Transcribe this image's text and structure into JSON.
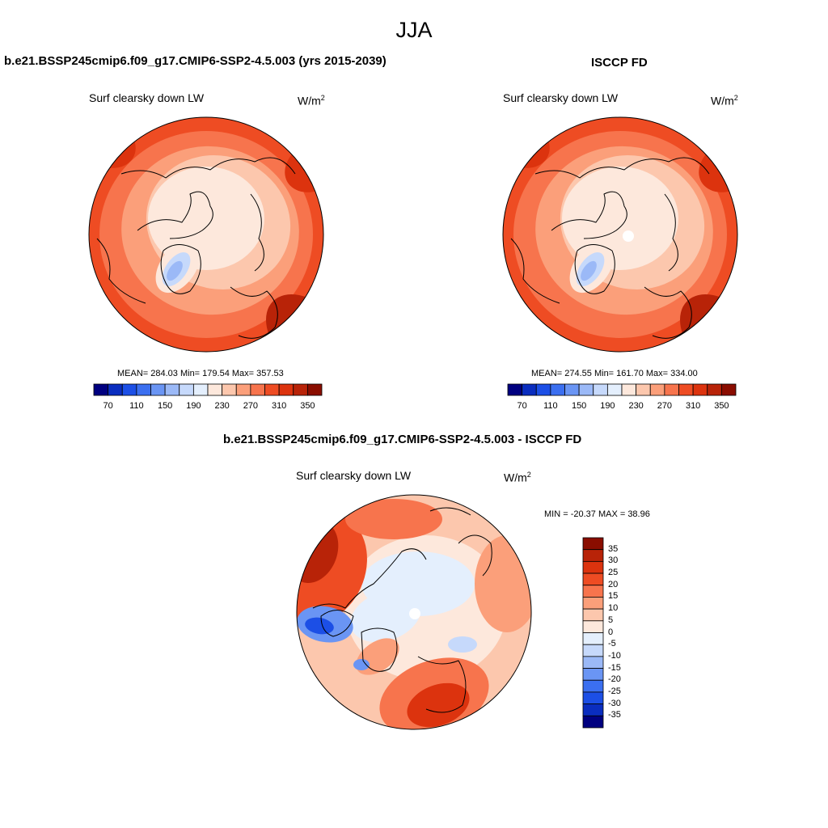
{
  "figure": {
    "season": "JJA"
  },
  "panels": [
    {
      "id": "model",
      "title": "b.e21.BSSP245cmip6.f09_g17.CMIP6-SSP2-4.5.003 (yrs 2015-2039)",
      "variable": "Surf clearsky down LW",
      "units_base": "W/m",
      "units_exp": "2",
      "stats_text": "MEAN= 284.03  Min= 179.54  Max= 357.53"
    },
    {
      "id": "obs",
      "title": "ISCCP FD",
      "variable": "Surf clearsky down LW",
      "units_base": "W/m",
      "units_exp": "2",
      "stats_text": "MEAN= 274.55  Min= 161.70  Max= 334.00"
    },
    {
      "id": "diff",
      "title": "b.e21.BSSP245cmip6.f09_g17.CMIP6-SSP2-4.5.003 - ISCCP FD",
      "variable": "Surf clearsky down LW",
      "units_base": "W/m",
      "units_exp": "2",
      "stats_text": "MIN = -20.37 MAX =  38.96"
    }
  ],
  "chart_data": [
    {
      "type": "heatmap",
      "projection": "north polar stereographic",
      "title": "b.e21.BSSP245cmip6.f09_g17.CMIP6-SSP2-4.5.003 (yrs 2015-2039)",
      "variable": "Surf clearsky down LW",
      "units": "W/m2",
      "mean": 284.03,
      "min": 179.54,
      "max": 357.53,
      "colorbar": {
        "orientation": "horizontal",
        "levels": [
          70,
          90,
          110,
          130,
          150,
          170,
          190,
          210,
          230,
          250,
          270,
          290,
          310,
          330,
          350
        ],
        "tick_labels": [
          "70",
          "110",
          "150",
          "190",
          "230",
          "270",
          "310",
          "350"
        ],
        "colors": [
          "#000080",
          "#0a2dbf",
          "#1c4fe6",
          "#3b6ff0",
          "#6a95f4",
          "#9bb9f7",
          "#c6d9fb",
          "#e4effd",
          "#fde8dc",
          "#fcc7ad",
          "#fb9f7a",
          "#f7744d",
          "#ee4c23",
          "#dc330e",
          "#b82308",
          "#8a0d00"
        ]
      }
    },
    {
      "type": "heatmap",
      "projection": "north polar stereographic",
      "title": "ISCCP FD",
      "variable": "Surf clearsky down LW",
      "units": "W/m2",
      "mean": 274.55,
      "min": 161.7,
      "max": 334.0,
      "colorbar": {
        "orientation": "horizontal",
        "levels": [
          70,
          90,
          110,
          130,
          150,
          170,
          190,
          210,
          230,
          250,
          270,
          290,
          310,
          330,
          350
        ],
        "tick_labels": [
          "70",
          "110",
          "150",
          "190",
          "230",
          "270",
          "310",
          "350"
        ],
        "colors": [
          "#000080",
          "#0a2dbf",
          "#1c4fe6",
          "#3b6ff0",
          "#6a95f4",
          "#9bb9f7",
          "#c6d9fb",
          "#e4effd",
          "#fde8dc",
          "#fcc7ad",
          "#fb9f7a",
          "#f7744d",
          "#ee4c23",
          "#dc330e",
          "#b82308",
          "#8a0d00"
        ]
      }
    },
    {
      "type": "heatmap",
      "projection": "north polar stereographic",
      "title": "b.e21.BSSP245cmip6.f09_g17.CMIP6-SSP2-4.5.003 - ISCCP FD",
      "variable": "Surf clearsky down LW",
      "units": "W/m2",
      "min": -20.37,
      "max": 38.96,
      "colorbar": {
        "orientation": "vertical",
        "levels": [
          35,
          30,
          25,
          20,
          15,
          10,
          5,
          0,
          -5,
          -10,
          -15,
          -20,
          -25,
          -30,
          -35
        ],
        "tick_labels": [
          "35",
          "30",
          "25",
          "20",
          "15",
          "10",
          "5",
          "0",
          "-5",
          "-10",
          "-15",
          "-20",
          "-25",
          "-30",
          "-35"
        ],
        "colors": [
          "#8a0d00",
          "#b82308",
          "#dc330e",
          "#ee4c23",
          "#f7744d",
          "#fb9f7a",
          "#fcc7ad",
          "#fde8dc",
          "#e4effd",
          "#c6d9fb",
          "#9bb9f7",
          "#6a95f4",
          "#3b6ff0",
          "#1c4fe6",
          "#0a2dbf",
          "#000080"
        ]
      }
    }
  ]
}
